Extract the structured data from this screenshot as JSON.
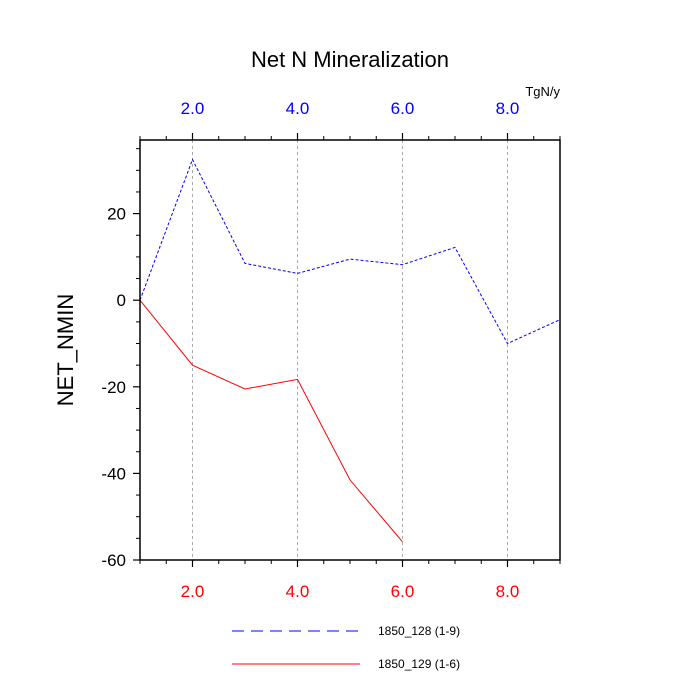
{
  "chart_data": {
    "type": "line",
    "title": "Net N Mineralization",
    "ylabel": "NET_NMIN",
    "units": "TgN/y",
    "xlim": [
      1,
      9
    ],
    "ylim": [
      -60,
      37
    ],
    "x_ticks": [
      2,
      4,
      6,
      8
    ],
    "x_tick_labels": [
      "2.0",
      "4.0",
      "6.0",
      "8.0"
    ],
    "y_ticks": [
      -60,
      -40,
      -20,
      0,
      20
    ],
    "y_tick_labels": [
      "-60",
      "-40",
      "-20",
      "0",
      "20"
    ],
    "y_minor_step": 5,
    "x_minor_step": 0.5,
    "vertical_gridlines": true,
    "series": [
      {
        "name": "1850_128 (1-9)",
        "color": "#0000ff",
        "dash": "dashed",
        "x": [
          1,
          2,
          3,
          4,
          5,
          6,
          7,
          8,
          9
        ],
        "y": [
          0,
          32.5,
          8.5,
          6.2,
          9.5,
          8.2,
          12.2,
          -10,
          -4.5
        ]
      },
      {
        "name": "1850_129 (1-6)",
        "color": "#ff0000",
        "dash": "solid",
        "x": [
          1,
          2,
          3,
          4,
          5,
          6
        ],
        "y": [
          0,
          -15,
          -20.5,
          -18.3,
          -41.5,
          -55.8
        ]
      }
    ],
    "top_axis_color": "#0000ff",
    "bottom_axis_color": "#ff0000",
    "legend_position": "bottom-center"
  }
}
